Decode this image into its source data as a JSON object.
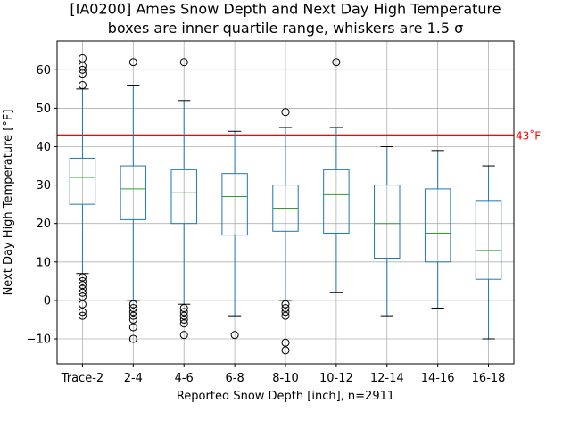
{
  "chart_data": {
    "type": "box",
    "title_lines": [
      "[IA0200] Ames Snow Depth and Next Day High Temperature",
      "boxes are inner quartile range, whiskers are 1.5 σ"
    ],
    "xlabel": "Reported Snow Depth [inch], n=2911",
    "ylabel": "Next Day High Temperature [°F]",
    "ylim": [
      -16.5,
      67.5
    ],
    "yticks": [
      -10,
      0,
      10,
      20,
      30,
      40,
      50,
      60
    ],
    "grid": true,
    "categories": [
      "Trace-2",
      "2-4",
      "4-6",
      "6-8",
      "8-10",
      "10-12",
      "12-14",
      "14-16",
      "16-18"
    ],
    "boxes": [
      {
        "q1": 25,
        "median": 32,
        "q3": 37,
        "whisker_low": 7,
        "whisker_high": 55,
        "outliers": [
          63,
          61,
          60,
          59,
          56,
          6,
          5,
          4,
          3,
          2,
          1,
          -1,
          -3,
          -4
        ]
      },
      {
        "q1": 21,
        "median": 29,
        "q3": 35,
        "whisker_low": 0,
        "whisker_high": 56,
        "outliers": [
          62,
          -1,
          -2,
          -3,
          -4,
          -5,
          -7,
          -10
        ]
      },
      {
        "q1": 20,
        "median": 28,
        "q3": 34,
        "whisker_low": -1,
        "whisker_high": 52,
        "outliers": [
          62,
          -2,
          -3,
          -4,
          -5,
          -6,
          -9
        ]
      },
      {
        "q1": 17,
        "median": 27,
        "q3": 33,
        "whisker_low": -4,
        "whisker_high": 44,
        "outliers": [
          -9
        ]
      },
      {
        "q1": 18,
        "median": 24,
        "q3": 30,
        "whisker_low": 0,
        "whisker_high": 45,
        "outliers": [
          49,
          -1,
          -2,
          -3,
          -4,
          -11,
          -13
        ]
      },
      {
        "q1": 17.5,
        "median": 27.5,
        "q3": 34,
        "whisker_low": 2,
        "whisker_high": 45,
        "outliers": [
          62
        ]
      },
      {
        "q1": 11,
        "median": 20,
        "q3": 30,
        "whisker_low": -4,
        "whisker_high": 40,
        "outliers": []
      },
      {
        "q1": 10,
        "median": 17.5,
        "q3": 29,
        "whisker_low": -2,
        "whisker_high": 39,
        "outliers": []
      },
      {
        "q1": 5.5,
        "median": 13,
        "q3": 26,
        "whisker_low": -10,
        "whisker_high": 35,
        "outliers": []
      }
    ],
    "reference_line": {
      "value": 43,
      "label": "43˚F",
      "color": "#ff0000"
    },
    "colors": {
      "box": "#1f77b4",
      "median": "#2ca02c",
      "grid": "#b0b0b0"
    }
  }
}
